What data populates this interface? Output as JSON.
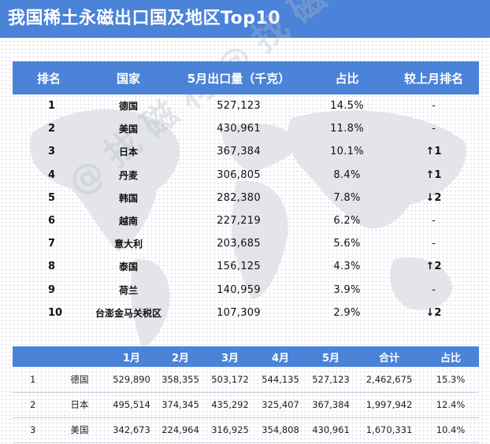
{
  "title": "我国稀土永磁出口国及地区Top10",
  "watermark": "@ 找 磁 材 @ 找 磁 材",
  "top_table": {
    "headers": [
      "排名",
      "国家",
      "5月出口量（千克）",
      "占比",
      "较上月排名"
    ],
    "rows": [
      {
        "rank": "1",
        "country": "德国",
        "volume": "527,123",
        "share": "14.5%",
        "change": "-",
        "dir": "none"
      },
      {
        "rank": "2",
        "country": "美国",
        "volume": "430,961",
        "share": "11.8%",
        "change": "-",
        "dir": "none"
      },
      {
        "rank": "3",
        "country": "日本",
        "volume": "367,384",
        "share": "10.1%",
        "change": "↑1",
        "dir": "up"
      },
      {
        "rank": "4",
        "country": "丹麦",
        "volume": "306,805",
        "share": "8.4%",
        "change": "↑1",
        "dir": "up"
      },
      {
        "rank": "5",
        "country": "韩国",
        "volume": "282,380",
        "share": "7.8%",
        "change": "↓2",
        "dir": "down"
      },
      {
        "rank": "6",
        "country": "越南",
        "volume": "227,219",
        "share": "6.2%",
        "change": "-",
        "dir": "none"
      },
      {
        "rank": "7",
        "country": "意大利",
        "volume": "203,685",
        "share": "5.6%",
        "change": "-",
        "dir": "none"
      },
      {
        "rank": "8",
        "country": "泰国",
        "volume": "156,125",
        "share": "4.3%",
        "change": "↑2",
        "dir": "up"
      },
      {
        "rank": "9",
        "country": "荷兰",
        "volume": "140,959",
        "share": "3.9%",
        "change": "-",
        "dir": "none"
      },
      {
        "rank": "10",
        "country": "台澎金马关税区",
        "volume": "107,309",
        "share": "2.9%",
        "change": "↓2",
        "dir": "down"
      }
    ]
  },
  "bottom_table": {
    "headers": [
      "",
      "",
      "1月",
      "2月",
      "3月",
      "4月",
      "5月",
      "合计",
      "占比"
    ],
    "rows": [
      {
        "rank": "1",
        "country": "德国",
        "m1": "529,890",
        "m2": "358,355",
        "m3": "503,172",
        "m4": "544,135",
        "m5": "527,123",
        "total": "2,462,675",
        "share": "15.3%"
      },
      {
        "rank": "2",
        "country": "日本",
        "m1": "495,514",
        "m2": "374,345",
        "m3": "435,292",
        "m4": "325,407",
        "m5": "367,384",
        "total": "1,997,942",
        "share": "12.4%"
      },
      {
        "rank": "3",
        "country": "美国",
        "m1": "342,673",
        "m2": "224,964",
        "m3": "316,925",
        "m4": "354,808",
        "m5": "430,961",
        "total": "1,670,331",
        "share": "10.4%"
      }
    ]
  },
  "colors": {
    "header_blue": "#4a83d8",
    "up_red": "#e02020",
    "down_green": "#3aa83a"
  }
}
